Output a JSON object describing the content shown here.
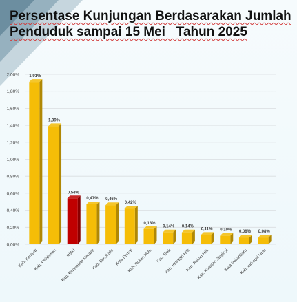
{
  "title": {
    "line1": "Persentase Kunjungan Berdasarakan Jumlah",
    "line2": "Penduduk sampai 15 Mei   Tahun 2025"
  },
  "colors": {
    "bar": "#f5bd07",
    "bar_highlight": "#c00000",
    "grid": "#d9dde0",
    "text": "#404040"
  },
  "chart_data": {
    "type": "bar",
    "title": "Persentase Kunjungan Berdasarakan Jumlah Penduduk sampai 15 Mei Tahun 2025",
    "xlabel": "",
    "ylabel": "",
    "ylim": [
      0,
      2.0
    ],
    "yticks": [
      "0,00%",
      "0,20%",
      "0,40%",
      "0,60%",
      "0,80%",
      "1,00%",
      "1,20%",
      "1,40%",
      "1,60%",
      "1,80%",
      "2,00%"
    ],
    "grid": true,
    "categories": [
      "Kab. Kampar",
      "Kab. Pelalawan",
      "RIAU",
      "Kab. Kepulauan Meranti",
      "Kab. Bengkalis",
      "Kota Dumai",
      "Kab. Rokan Hulu",
      "Kab. Siak",
      "Kab. Indragiri Hilir",
      "Kab. Rokan Hilir",
      "Kab. Kuantan Singingi",
      "Kota Pekanbaru",
      "Kab. Indragiri Hulu"
    ],
    "values": [
      1.91,
      1.39,
      0.54,
      0.47,
      0.46,
      0.42,
      0.18,
      0.14,
      0.14,
      0.11,
      0.1,
      0.08,
      0.08
    ],
    "labels": [
      "1,91%",
      "1,39%",
      "0,54%",
      "0,47%",
      "0,46%",
      "0,42%",
      "0,18%",
      "0,14%",
      "0,14%",
      "0,11%",
      "0,10%",
      "0,08%",
      "0,08%"
    ],
    "highlight_category": "RIAU"
  }
}
